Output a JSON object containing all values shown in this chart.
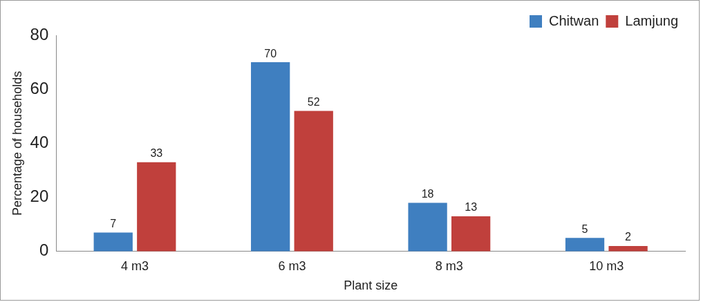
{
  "chart_data": {
    "type": "bar",
    "xlabel": "Plant size",
    "ylabel": "Percentage of households",
    "categories": [
      "4 m3",
      "6 m3",
      "8 m3",
      "10 m3"
    ],
    "series": [
      {
        "name": "Chitwan",
        "color": "#3f7fc0",
        "values": [
          7,
          70,
          18,
          5
        ]
      },
      {
        "name": "Lamjung",
        "color": "#c0403c",
        "values": [
          33,
          52,
          13,
          2
        ]
      }
    ],
    "ylim": [
      0,
      80
    ],
    "yticks": [
      0,
      20,
      40,
      60,
      80
    ],
    "grid": false,
    "legend": "top right",
    "data_labels": true
  }
}
